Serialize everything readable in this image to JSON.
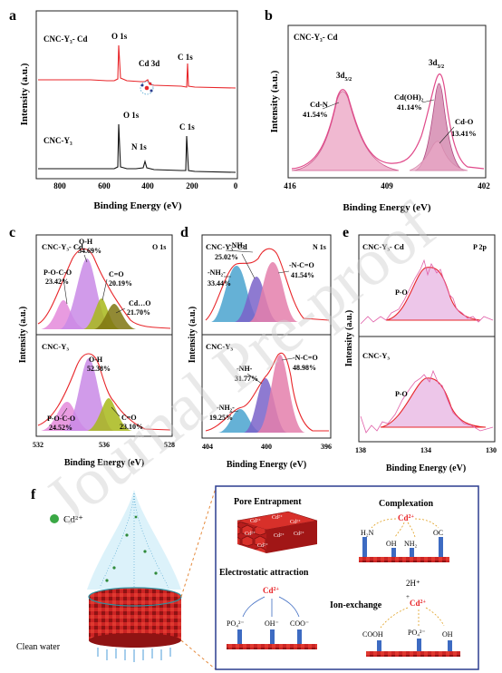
{
  "watermark": "Journal Pre-proof",
  "panels": {
    "a": {
      "letter": "a",
      "xlabel": "Binding Energy (eV)",
      "ylabel": "Intensity (a.u.)",
      "xticks": [
        "800",
        "600",
        "400",
        "200",
        "0"
      ],
      "top": {
        "sample": "CNC-Y₃- Cd",
        "peaks": [
          "O 1s",
          "Cd 3d",
          "C 1s"
        ],
        "color": "#e8262a"
      },
      "bottom": {
        "sample": "CNC-Y₃",
        "peaks": [
          "O 1s",
          "N 1s",
          "C 1s"
        ],
        "color": "#111111"
      }
    },
    "b": {
      "letter": "b",
      "sample": "CNC-Y₃- Cd",
      "xlabel": "Binding Energy (eV)",
      "ylabel": "Intensity (a.u.)",
      "xticks": [
        "416",
        "409",
        "402"
      ],
      "orbital_left": "3d5/2",
      "orbital_right": "3d3/2",
      "components": [
        {
          "name": "Cd-N",
          "pct": "41.54%"
        },
        {
          "name": "Cd(OH)₂",
          "pct": "41.14%"
        },
        {
          "name": "Cd-O",
          "pct": "13.41%"
        }
      ]
    },
    "c": {
      "letter": "c",
      "region": "O 1s",
      "xlabel": "Binding Energy (eV)",
      "ylabel": "Intensity (a.u.)",
      "xticks": [
        "532",
        "536",
        "528"
      ],
      "top": {
        "sample": "CNC-Y₃- Cd",
        "components": [
          {
            "name": "P-O-C-O",
            "pct": "23.42%"
          },
          {
            "name": "O-H",
            "pct": "34.69%"
          },
          {
            "name": "C=O",
            "pct": "20.19%"
          },
          {
            "name": "Cd…O",
            "pct": "21.70%"
          }
        ]
      },
      "bottom": {
        "sample": "CNC-Y₃",
        "components": [
          {
            "name": "O-H",
            "pct": "52.38%"
          },
          {
            "name": "P-O-C-O",
            "pct": "24.52%"
          },
          {
            "name": "C=O",
            "pct": "23.10%"
          }
        ]
      }
    },
    "d": {
      "letter": "d",
      "region": "N 1s",
      "xlabel": "Binding Energy (eV)",
      "ylabel": "Intensity (a.u.)",
      "xticks": [
        "404",
        "400",
        "396"
      ],
      "top": {
        "sample": "CNC-Y₃- Cd",
        "components": [
          {
            "name": "-NH-",
            "pct": "25.02%"
          },
          {
            "name": "-NH₂-",
            "pct": "33.44%"
          },
          {
            "name": "-N-C=O",
            "pct": "41.54%"
          }
        ]
      },
      "bottom": {
        "sample": "CNC-Y₃",
        "components": [
          {
            "name": "-NH-",
            "pct": "31.77%"
          },
          {
            "name": "-NH₂-",
            "pct": "19.25%"
          },
          {
            "name": "-N-C=O",
            "pct": "48.98%"
          }
        ]
      }
    },
    "e": {
      "letter": "e",
      "region": "P 2p",
      "xlabel": "Binding Energy (eV)",
      "ylabel": "Intensity (a.u.)",
      "xticks": [
        "138",
        "134",
        "130"
      ],
      "top": {
        "sample": "CNC-Y₃- Cd",
        "component": "P-O"
      },
      "bottom": {
        "sample": "CNC-Y₃",
        "component": "P-O"
      }
    },
    "f": {
      "letter": "f",
      "ion": "Cd²⁺",
      "clean_water": "Clean water",
      "pore": "Pore Entrapment",
      "complexation": "Complexation",
      "electrostatic": "Electrostatic attraction",
      "ion_exchange": "Ion-exchange",
      "hplus": "2H⁺",
      "groups": {
        "h2n": "H₂N",
        "oh": "OH",
        "nh2": "NH₂",
        "oc": "OC",
        "po4": "PO₄²⁻",
        "ohm": "OH⁻",
        "coo": "COO⁻",
        "cooh": "COOH"
      }
    }
  },
  "colors": {
    "red": "#e8262a",
    "pink": "#e47fab",
    "violet": "#c98ae6",
    "olive": "#a8b81a",
    "blue": "#4aa3cf",
    "purple": "#7a63c9",
    "navy": "#2c3d8f",
    "orange": "#e58a3c"
  }
}
